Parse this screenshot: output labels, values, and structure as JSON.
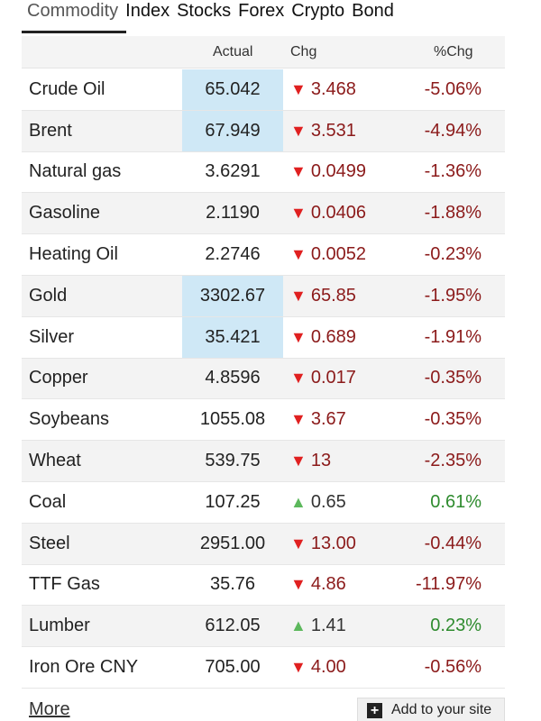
{
  "tabs": [
    {
      "label": "Commodity",
      "active": true
    },
    {
      "label": "Index",
      "active": false
    },
    {
      "label": "Stocks",
      "active": false
    },
    {
      "label": "Forex",
      "active": false
    },
    {
      "label": "Crypto",
      "active": false
    },
    {
      "label": "Bond",
      "active": false
    }
  ],
  "table": {
    "headers": {
      "actual": "Actual",
      "chg": "Chg",
      "pchg": "%Chg"
    },
    "rows": [
      {
        "name": "Crude Oil",
        "actual": "65.042",
        "chg": "3.468",
        "pchg": "-5.06%",
        "direction": "down",
        "highlight": true
      },
      {
        "name": "Brent",
        "actual": "67.949",
        "chg": "3.531",
        "pchg": "-4.94%",
        "direction": "down",
        "highlight": true
      },
      {
        "name": "Natural gas",
        "actual": "3.6291",
        "chg": "0.0499",
        "pchg": "-1.36%",
        "direction": "down",
        "highlight": false
      },
      {
        "name": "Gasoline",
        "actual": "2.1190",
        "chg": "0.0406",
        "pchg": "-1.88%",
        "direction": "down",
        "highlight": false
      },
      {
        "name": "Heating Oil",
        "actual": "2.2746",
        "chg": "0.0052",
        "pchg": "-0.23%",
        "direction": "down",
        "highlight": false
      },
      {
        "name": "Gold",
        "actual": "3302.67",
        "chg": "65.85",
        "pchg": "-1.95%",
        "direction": "down",
        "highlight": true
      },
      {
        "name": "Silver",
        "actual": "35.421",
        "chg": "0.689",
        "pchg": "-1.91%",
        "direction": "down",
        "highlight": true
      },
      {
        "name": "Copper",
        "actual": "4.8596",
        "chg": "0.017",
        "pchg": "-0.35%",
        "direction": "down",
        "highlight": false
      },
      {
        "name": "Soybeans",
        "actual": "1055.08",
        "chg": "3.67",
        "pchg": "-0.35%",
        "direction": "down",
        "highlight": false
      },
      {
        "name": "Wheat",
        "actual": "539.75",
        "chg": "13",
        "pchg": "-2.35%",
        "direction": "down",
        "highlight": false
      },
      {
        "name": "Coal",
        "actual": "107.25",
        "chg": "0.65",
        "pchg": "0.61%",
        "direction": "up",
        "highlight": false
      },
      {
        "name": "Steel",
        "actual": "2951.00",
        "chg": "13.00",
        "pchg": "-0.44%",
        "direction": "down",
        "highlight": false
      },
      {
        "name": "TTF Gas",
        "actual": "35.76",
        "chg": "4.86",
        "pchg": "-11.97%",
        "direction": "down",
        "highlight": false
      },
      {
        "name": "Lumber",
        "actual": "612.05",
        "chg": "1.41",
        "pchg": "0.23%",
        "direction": "up",
        "highlight": false
      },
      {
        "name": "Iron Ore CNY",
        "actual": "705.00",
        "chg": "4.00",
        "pchg": "-0.56%",
        "direction": "down",
        "highlight": false
      }
    ]
  },
  "footer": {
    "more_label": "More",
    "add_label": "Add to your site",
    "add_icon": "plus-square-icon"
  },
  "colors": {
    "down_arrow": "#e02020",
    "up_arrow": "#5cb85c",
    "negative": "#8b1a1a",
    "positive": "#2e8b2e",
    "highlight": "#cfe8f6"
  }
}
